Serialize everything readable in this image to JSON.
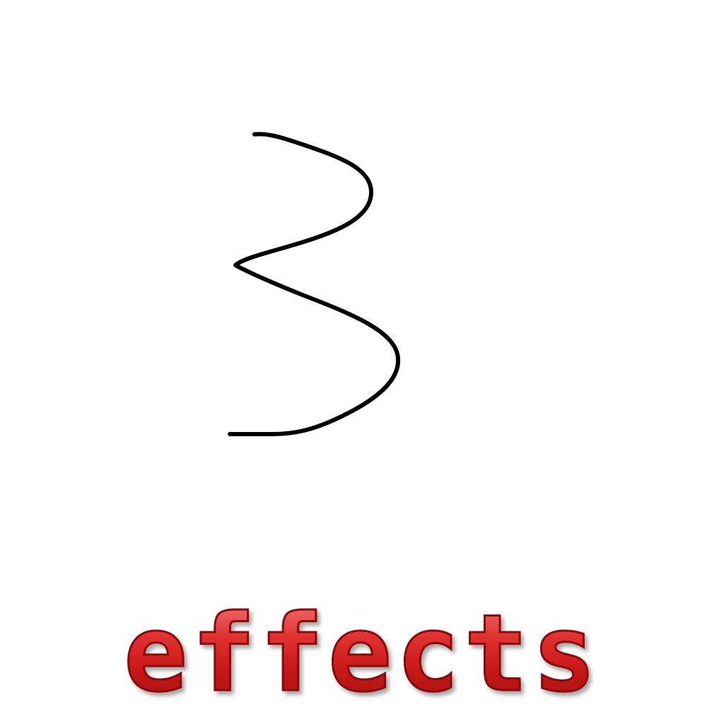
{
  "drawing": {
    "icon": "hand-drawn-numeral-three",
    "stroke_color": "#000000"
  },
  "caption": {
    "text": "effects",
    "color": "#d01e1e"
  }
}
